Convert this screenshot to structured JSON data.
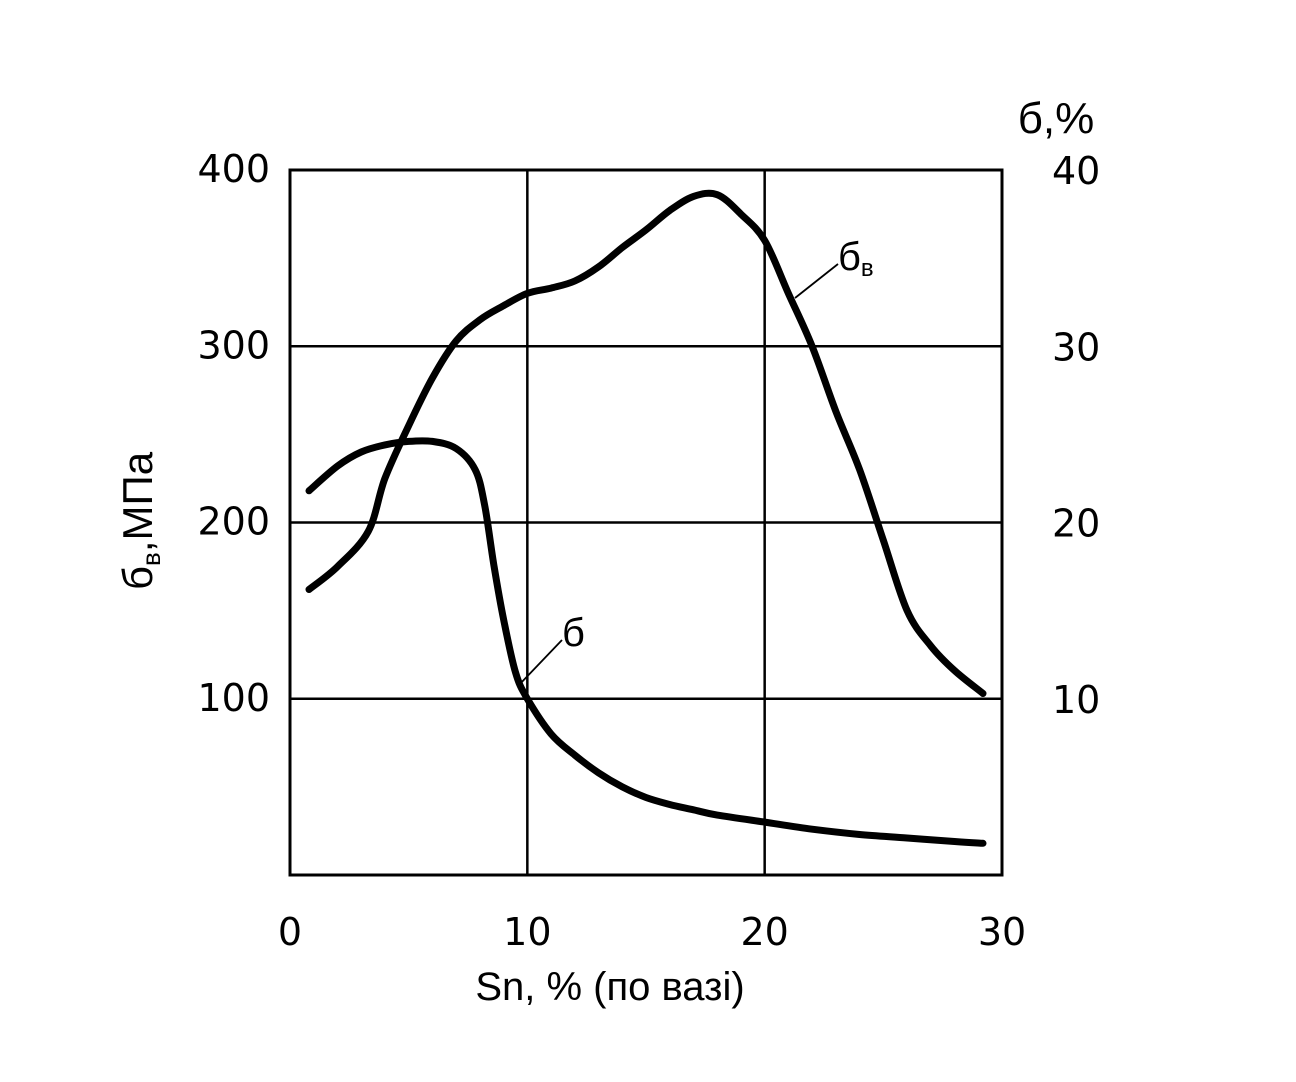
{
  "chart_data": {
    "type": "line",
    "xlabel": "Sn, % (по вазі)",
    "ylabel_left": {
      "main": "б",
      "sub": "в",
      "rest": ",МПа"
    },
    "ylabel_right": "б,%",
    "xlim": [
      0,
      30
    ],
    "ylim_left": [
      0,
      400
    ],
    "ylim_right": [
      0,
      40
    ],
    "x_ticks": [
      "0",
      "10",
      "20",
      "30"
    ],
    "y_ticks_left": [
      "100",
      "200",
      "300",
      "400"
    ],
    "y_ticks_right": [
      "10",
      "20",
      "30",
      "40"
    ],
    "grid": true,
    "series": [
      {
        "label": {
          "main": "б",
          "sub": "в"
        },
        "axis": "left",
        "x": [
          0.8,
          2.0,
          3.3,
          4.0,
          5.0,
          6.0,
          7.0,
          8.0,
          9.0,
          10.0,
          11.0,
          12.0,
          13.0,
          14.0,
          15.0,
          16.0,
          17.0,
          18.0,
          19.0,
          20.0,
          21.0,
          22.0,
          23.0,
          24.0,
          25.0,
          26.0,
          27.0,
          28.0,
          29.2
        ],
        "y": [
          162,
          175,
          195,
          225,
          255,
          282,
          303,
          315,
          323,
          330,
          333,
          337,
          345,
          356,
          366,
          377,
          385,
          386,
          375,
          360,
          330,
          300,
          263,
          230,
          190,
          150,
          130,
          116,
          103
        ]
      },
      {
        "label": {
          "main": "б"
        },
        "axis": "right",
        "x": [
          0.8,
          2.0,
          3.0,
          4.0,
          5.0,
          6.0,
          7.0,
          7.8,
          8.2,
          8.6,
          9.0,
          9.5,
          10.0,
          11.0,
          12.0,
          13.0,
          14.0,
          15.0,
          16.0,
          17.0,
          18.0,
          20.0,
          22.0,
          24.0,
          26.0,
          28.0,
          29.2
        ],
        "y": [
          21.8,
          23.2,
          24.0,
          24.4,
          24.6,
          24.6,
          24.2,
          23.0,
          21.0,
          17.5,
          14.5,
          11.5,
          10.0,
          8.0,
          6.8,
          5.8,
          5.0,
          4.4,
          4.0,
          3.7,
          3.4,
          3.0,
          2.6,
          2.3,
          2.1,
          1.9,
          1.8
        ]
      }
    ]
  }
}
